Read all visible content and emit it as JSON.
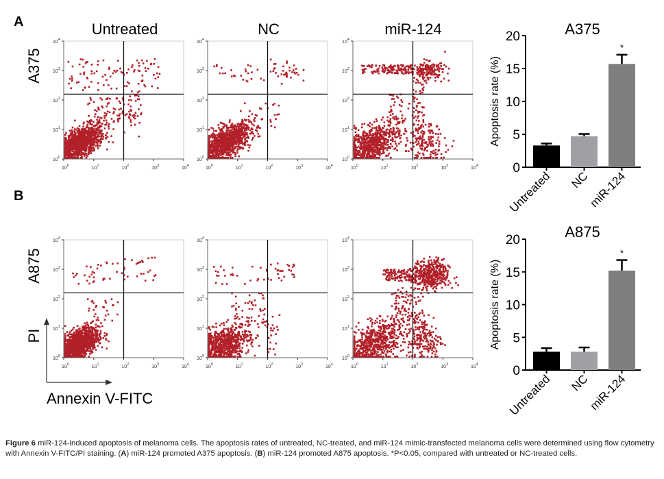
{
  "panel_labels": {
    "a": "A",
    "b": "B"
  },
  "column_titles": [
    "Untreated",
    "NC",
    "miR-124"
  ],
  "row_labels": {
    "a": "A375",
    "b": "A875"
  },
  "flow_axes": {
    "y_label": "PI",
    "x_label": "Annexin V-FITC",
    "ticks": [
      "10",
      "10",
      "10",
      "10",
      "10"
    ],
    "tick_exponents": [
      "0",
      "1",
      "2",
      "3",
      "4"
    ]
  },
  "point_color": "#b22029",
  "chart_data": [
    {
      "type": "bar",
      "title": "A375",
      "ylabel": "Apoptosis rate (%)",
      "categories": [
        "Untreated",
        "NC",
        "miR-124"
      ],
      "values": [
        3.3,
        4.7,
        15.7
      ],
      "errors": [
        0.3,
        0.35,
        1.4
      ],
      "significance": [
        "",
        "",
        "*"
      ],
      "ylim": [
        0,
        20
      ],
      "yticks": [
        "0",
        "5",
        "10",
        "15",
        "20"
      ],
      "colors": [
        "#000000",
        "#a0a0a4",
        "#7f7f7f"
      ]
    },
    {
      "type": "bar",
      "title": "A875",
      "ylabel": "Apoptosis rate (%)",
      "categories": [
        "Untreated",
        "NC",
        "miR-124"
      ],
      "values": [
        2.8,
        2.8,
        15.2
      ],
      "errors": [
        0.55,
        0.65,
        1.6
      ],
      "significance": [
        "",
        "",
        "*"
      ],
      "ylim": [
        0,
        20
      ],
      "yticks": [
        "0",
        "5",
        "10",
        "15",
        "20"
      ],
      "colors": [
        "#000000",
        "#a0a0a4",
        "#7f7f7f"
      ]
    }
  ],
  "caption": {
    "figure_label": "Figure 6",
    "part1": " miR-124-induced apoptosis of melanoma cells. The apoptosis rates of untreated, NC-treated, and miR-124 mimic-transfected melanoma cells were determined using flow cytometry with Annexin V-FITC/PI staining. (",
    "a": "A",
    "part2": ") miR-124 promoted A375 apoptosis. (",
    "b": "B",
    "part3": ") miR-124 promoted A875 apoptosis. *P<0.05, compared with untreated or NC-treated cells."
  }
}
